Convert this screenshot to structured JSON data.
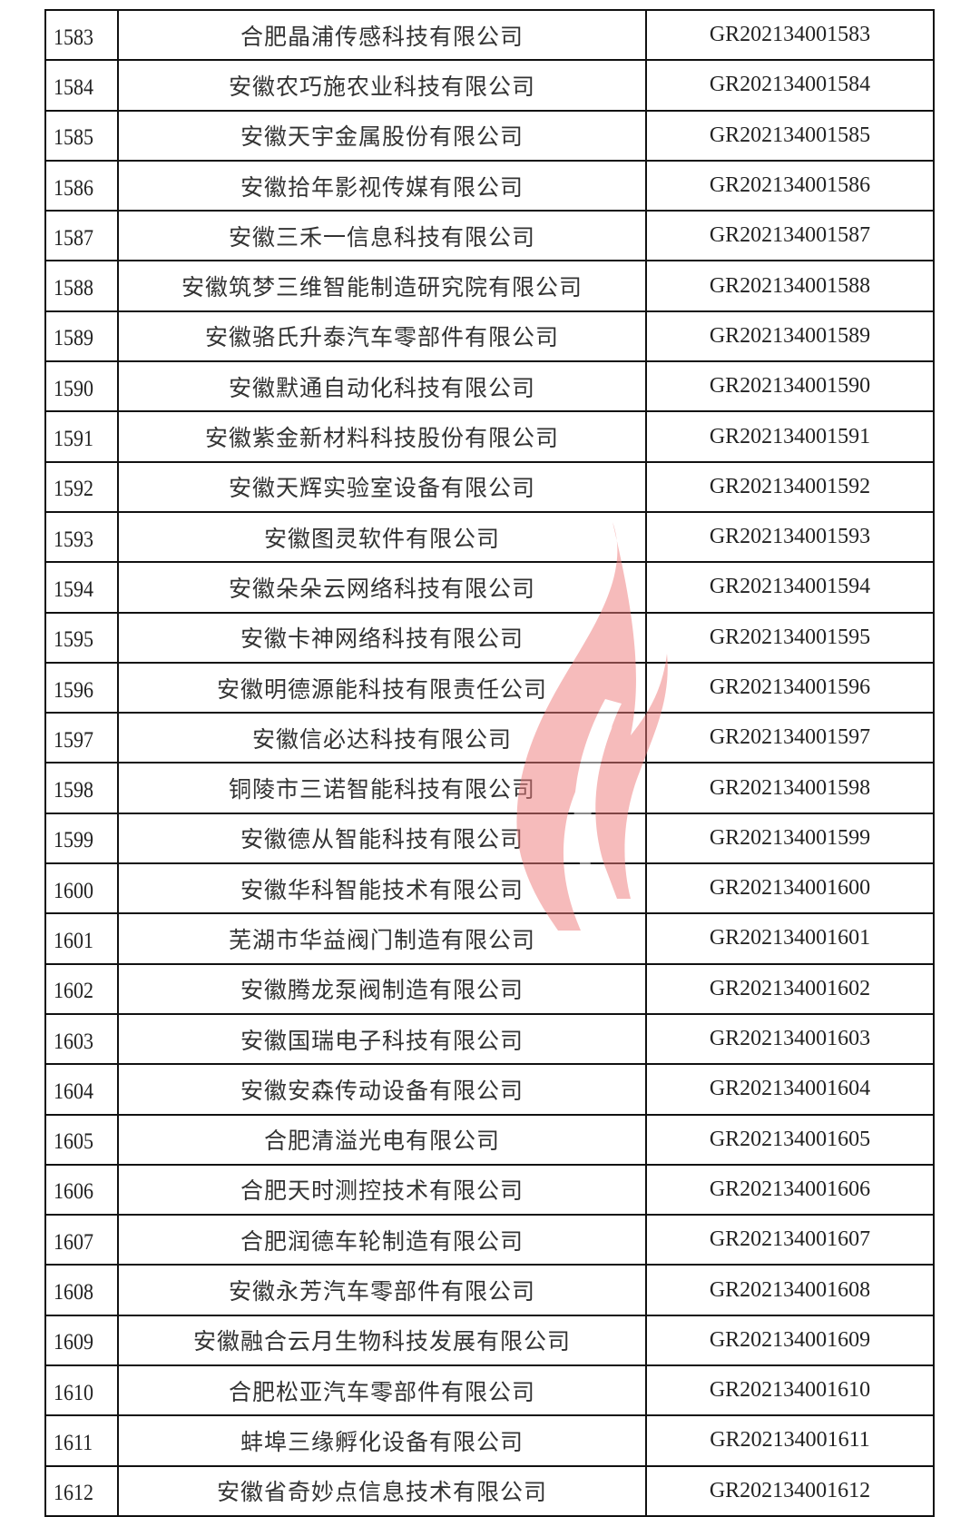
{
  "table": {
    "rows": [
      {
        "no": "1583",
        "name": "合肥晶浦传感科技有限公司",
        "code": "GR202134001583"
      },
      {
        "no": "1584",
        "name": "安徽农巧施农业科技有限公司",
        "code": "GR202134001584"
      },
      {
        "no": "1585",
        "name": "安徽天宇金属股份有限公司",
        "code": "GR202134001585"
      },
      {
        "no": "1586",
        "name": "安徽拾年影视传媒有限公司",
        "code": "GR202134001586"
      },
      {
        "no": "1587",
        "name": "安徽三禾一信息科技有限公司",
        "code": "GR202134001587"
      },
      {
        "no": "1588",
        "name": "安徽筑梦三维智能制造研究院有限公司",
        "code": "GR202134001588"
      },
      {
        "no": "1589",
        "name": "安徽骆氏升泰汽车零部件有限公司",
        "code": "GR202134001589"
      },
      {
        "no": "1590",
        "name": "安徽默通自动化科技有限公司",
        "code": "GR202134001590"
      },
      {
        "no": "1591",
        "name": "安徽紫金新材料科技股份有限公司",
        "code": "GR202134001591"
      },
      {
        "no": "1592",
        "name": "安徽天辉实验室设备有限公司",
        "code": "GR202134001592"
      },
      {
        "no": "1593",
        "name": "安徽图灵软件有限公司",
        "code": "GR202134001593"
      },
      {
        "no": "1594",
        "name": "安徽朵朵云网络科技有限公司",
        "code": "GR202134001594"
      },
      {
        "no": "1595",
        "name": "安徽卡神网络科技有限公司",
        "code": "GR202134001595"
      },
      {
        "no": "1596",
        "name": "安徽明德源能科技有限责任公司",
        "code": "GR202134001596"
      },
      {
        "no": "1597",
        "name": "安徽信必达科技有限公司",
        "code": "GR202134001597"
      },
      {
        "no": "1598",
        "name": "铜陵市三诺智能科技有限公司",
        "code": "GR202134001598"
      },
      {
        "no": "1599",
        "name": "安徽德从智能科技有限公司",
        "code": "GR202134001599"
      },
      {
        "no": "1600",
        "name": "安徽华科智能技术有限公司",
        "code": "GR202134001600"
      },
      {
        "no": "1601",
        "name": "芜湖市华益阀门制造有限公司",
        "code": "GR202134001601"
      },
      {
        "no": "1602",
        "name": "安徽腾龙泵阀制造有限公司",
        "code": "GR202134001602"
      },
      {
        "no": "1603",
        "name": "安徽国瑞电子科技有限公司",
        "code": "GR202134001603"
      },
      {
        "no": "1604",
        "name": "安徽安森传动设备有限公司",
        "code": "GR202134001604"
      },
      {
        "no": "1605",
        "name": "合肥清溢光电有限公司",
        "code": "GR202134001605"
      },
      {
        "no": "1606",
        "name": "合肥天时测控技术有限公司",
        "code": "GR202134001606"
      },
      {
        "no": "1607",
        "name": "合肥润德车轮制造有限公司",
        "code": "GR202134001607"
      },
      {
        "no": "1608",
        "name": "安徽永芳汽车零部件有限公司",
        "code": "GR202134001608"
      },
      {
        "no": "1609",
        "name": "安徽融合云月生物科技发展有限公司",
        "code": "GR202134001609"
      },
      {
        "no": "1610",
        "name": "合肥松亚汽车零部件有限公司",
        "code": "GR202134001610"
      },
      {
        "no": "1611",
        "name": "蚌埠三缘孵化设备有限公司",
        "code": "GR202134001611"
      },
      {
        "no": "1612",
        "name": "安徽省奇妙点信息技术有限公司",
        "code": "GR202134001612"
      }
    ]
  },
  "watermark": {
    "icon": "flame-logo-icon",
    "color": "#ee7a7a"
  }
}
